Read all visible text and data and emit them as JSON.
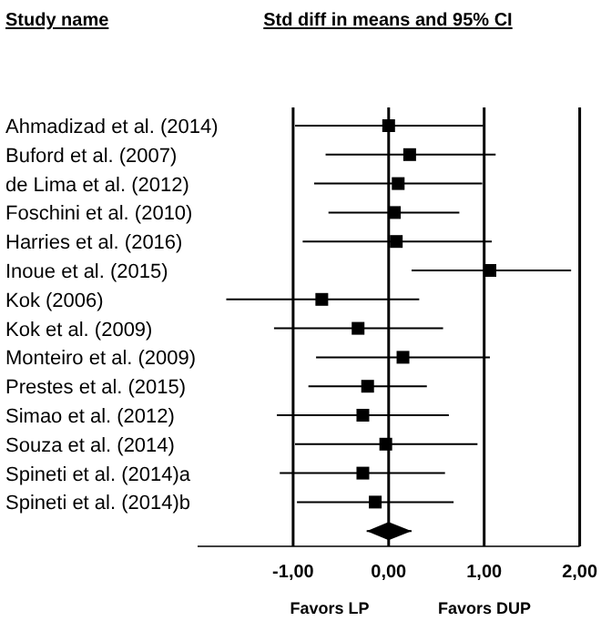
{
  "chart_data": {
    "type": "scatter",
    "orientation": "horizontal",
    "title": "Std diff in means and 95% CI",
    "ylabel": "Study name",
    "categories": [
      "Ahmadizad et al. (2014)",
      "Buford et al. (2007)",
      "de Lima et al. (2012)",
      "Foschini et al. (2010)",
      "Harries et al. (2016)",
      "Inoue et al. (2015)",
      "Kok (2006)",
      "Kok et al. (2009)",
      "Monteiro et al. (2009)",
      "Prestes et al. (2015)",
      "Simao et al. (2012)",
      "Souza et al. (2014)",
      "Spineti et al. (2014)a",
      "Spineti et al. (2014)b",
      null
    ],
    "series": [
      {
        "color": "#000000",
        "marker": "square",
        "values": [
          0.0,
          0.22,
          0.1,
          0.06,
          0.08,
          1.06,
          -0.7,
          -0.32,
          0.15,
          -0.22,
          -0.27,
          -0.03,
          -0.27,
          -0.14,
          null
        ],
        "errors": [
          [
            -0.98,
            0.99
          ],
          [
            -0.66,
            1.12
          ],
          [
            -0.78,
            0.98
          ],
          [
            -0.63,
            0.74
          ],
          [
            -0.9,
            1.08
          ],
          [
            0.24,
            1.91
          ],
          [
            -1.7,
            0.32
          ],
          [
            -1.2,
            0.57
          ],
          [
            -0.76,
            1.06
          ],
          [
            -0.84,
            0.4
          ],
          [
            -1.17,
            0.63
          ],
          [
            -0.98,
            0.93
          ],
          [
            -1.14,
            0.59
          ],
          [
            -0.96,
            0.68
          ],
          null
        ]
      },
      {
        "color": "#000000",
        "marker": "diamond",
        "values": [
          null,
          null,
          null,
          null,
          null,
          null,
          null,
          null,
          null,
          null,
          null,
          null,
          null,
          null,
          0.0
        ],
        "errors": [
          null,
          null,
          null,
          null,
          null,
          null,
          null,
          null,
          null,
          null,
          null,
          null,
          null,
          null,
          [
            -0.23,
            0.24
          ]
        ]
      }
    ],
    "xlim": [
      -2,
      2
    ],
    "xticks": [
      {
        "value": -1,
        "label": "-1,00"
      },
      {
        "value": 0,
        "label": "0,00"
      },
      {
        "value": 1,
        "label": "1,00"
      },
      {
        "value": 2,
        "label": "2,00"
      }
    ],
    "grid": "x",
    "annotations": [
      "Favors LP",
      "Favors DUP"
    ]
  }
}
